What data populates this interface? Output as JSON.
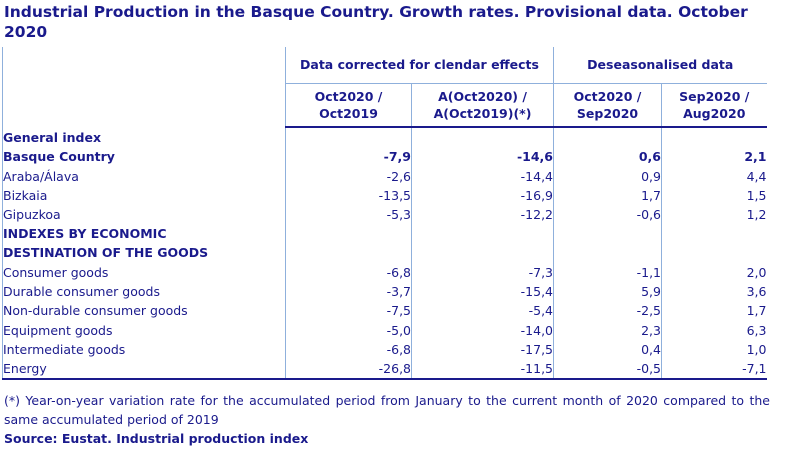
{
  "title": "Industrial Production in the Basque Country. Growth rates. Provisional data. October 2020",
  "groups": {
    "calendar": "Data corrected for clendar effects",
    "deseasonalised": "Deseasonalised data"
  },
  "columns": {
    "c1": "Oct2020 / Oct2019",
    "c2": "A(Oct2020) / A(Oct2019)(*)",
    "c3": "Oct2020 / Sep2020",
    "c4": "Sep2020 / Aug2020"
  },
  "section1": "General index",
  "section2": "INDEXES BY ECONOMIC DESTINATION OF THE GOODS",
  "rows1": [
    {
      "label": "Basque Country",
      "v1": "-7,9",
      "v2": "-14,6",
      "v3": "0,6",
      "v4": "2,1"
    },
    {
      "label": "Araba/Álava",
      "v1": "-2,6",
      "v2": "-14,4",
      "v3": "0,9",
      "v4": "4,4"
    },
    {
      "label": "Bizkaia",
      "v1": "-13,5",
      "v2": "-16,9",
      "v3": "1,7",
      "v4": "1,5"
    },
    {
      "label": "Gipuzkoa",
      "v1": "-5,3",
      "v2": "-12,2",
      "v3": "-0,6",
      "v4": "1,2"
    }
  ],
  "rows2": [
    {
      "label": "Consumer goods",
      "v1": "-6,8",
      "v2": "-7,3",
      "v3": "-1,1",
      "v4": "2,0"
    },
    {
      "label": "Durable consumer goods",
      "v1": "-3,7",
      "v2": "-15,4",
      "v3": "5,9",
      "v4": "3,6"
    },
    {
      "label": "Non-durable consumer goods",
      "v1": "-7,5",
      "v2": "-5,4",
      "v3": "-2,5",
      "v4": "1,7"
    },
    {
      "label": "Equipment goods",
      "v1": "-5,0",
      "v2": "-14,0",
      "v3": "2,3",
      "v4": "6,3"
    },
    {
      "label": "Intermediate goods",
      "v1": "-6,8",
      "v2": "-17,5",
      "v3": "0,4",
      "v4": "1,0"
    },
    {
      "label": "Energy",
      "v1": "-26,8",
      "v2": "-11,5",
      "v3": "-0,5",
      "v4": "-7,1"
    }
  ],
  "note": "(*) Year-on-year variation rate for the accumulated period from January to the current month of 2020 compared to the same accumulated period of 2019",
  "source": "Source: Eustat. Industrial production index"
}
